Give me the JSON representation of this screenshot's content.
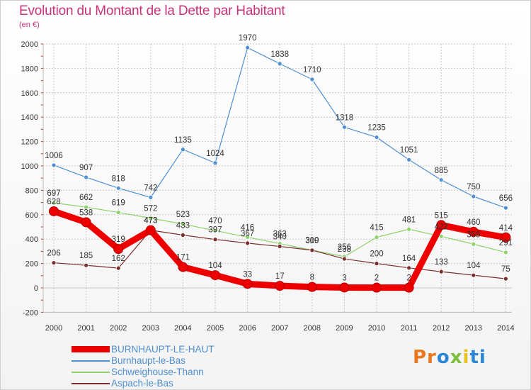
{
  "header": {
    "title": "Evolution du Montant de la Dette par Habitant",
    "subtitle": "(en €)"
  },
  "colors": {
    "title": "#c8337a",
    "grid": "#c8c8c8",
    "axis_ticks": "#cc2222"
  },
  "logo": {
    "parts": [
      "Pr",
      "o",
      "x",
      "i",
      "ti"
    ],
    "colors": [
      "#e8791f",
      "#2b87d6",
      "#7bbf3a",
      "#e8c11f",
      "#2b87d6"
    ]
  },
  "chart_data": {
    "type": "line",
    "x": [
      "2000",
      "2001",
      "2002",
      "2003",
      "2004",
      "2005",
      "2006",
      "2007",
      "2008",
      "2009",
      "2010",
      "2011",
      "2012",
      "2013",
      "2014"
    ],
    "ylim": [
      -200,
      2000
    ],
    "yticks": [
      -200,
      0,
      200,
      400,
      600,
      800,
      1000,
      1200,
      1400,
      1600,
      1800,
      2000
    ],
    "grid": true,
    "legend_position": "bottom-left",
    "series": [
      {
        "name": "Burnhaupt-le-Bas",
        "color": "#4f8fd0",
        "values": [
          1006,
          907,
          818,
          742,
          1135,
          1024,
          1970,
          1838,
          1710,
          1318,
          1235,
          1051,
          885,
          750,
          656
        ]
      },
      {
        "name": "Schweighouse-Thann",
        "color": "#8ed26a",
        "values": [
          697,
          662,
          619,
          572,
          523,
          470,
          416,
          363,
          310,
          256,
          415,
          481,
          422,
          359,
          291
        ]
      },
      {
        "name": "Aspach-le-Bas",
        "color": "#7a2e2e",
        "values": [
          206,
          185,
          162,
          473,
          433,
          397,
          367,
          340,
          309,
          238,
          200,
          164,
          133,
          104,
          75
        ]
      },
      {
        "name": "BURNHAUPT-LE-HAUT",
        "color": "#ee0000",
        "values": [
          628,
          538,
          319,
          473,
          171,
          104,
          33,
          17,
          8,
          3,
          2,
          2,
          515,
          460,
          414
        ]
      }
    ]
  }
}
